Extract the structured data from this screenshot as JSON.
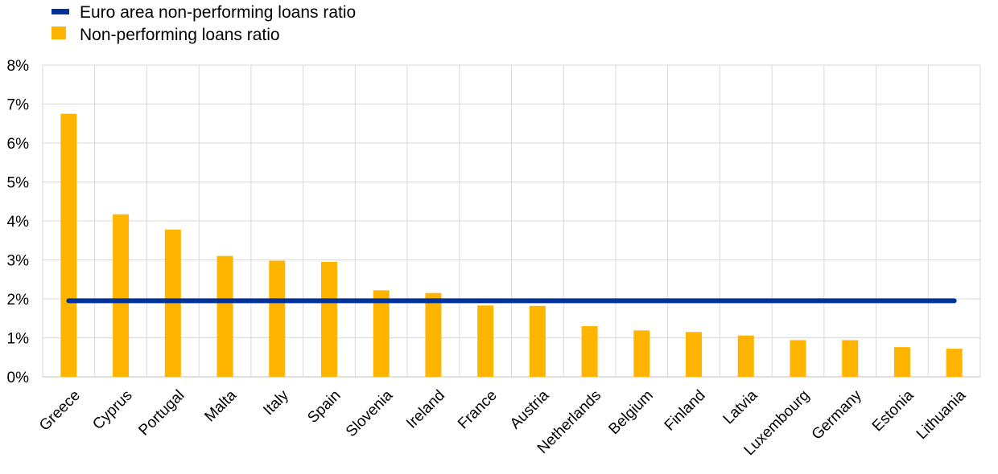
{
  "chart_data": {
    "type": "bar",
    "categories": [
      "Greece",
      "Cyprus",
      "Portugal",
      "Malta",
      "Italy",
      "Spain",
      "Slovenia",
      "Ireland",
      "France",
      "Austria",
      "Netherlands",
      "Belgium",
      "Finland",
      "Latvia",
      "Luxembourg",
      "Germany",
      "Estonia",
      "Lithuania"
    ],
    "series": [
      {
        "name": "Non-performing loans ratio",
        "kind": "bar",
        "color": "#FFB400",
        "values": [
          6.75,
          4.17,
          3.78,
          3.1,
          2.98,
          2.95,
          2.22,
          2.15,
          1.83,
          1.82,
          1.3,
          1.19,
          1.15,
          1.06,
          0.94,
          0.94,
          0.76,
          0.72
        ]
      },
      {
        "name": "Euro area non-performing loans ratio",
        "kind": "line",
        "color": "#003299",
        "value": 1.95
      }
    ],
    "y_ticks": [
      "0%",
      "1%",
      "2%",
      "3%",
      "4%",
      "5%",
      "6%",
      "7%",
      "8%"
    ],
    "ylim": [
      0,
      8
    ],
    "grid": true,
    "legend_position": "top-left"
  },
  "legend": {
    "line_label": "Euro area non-performing loans ratio",
    "bar_label": "Non-performing loans ratio"
  }
}
